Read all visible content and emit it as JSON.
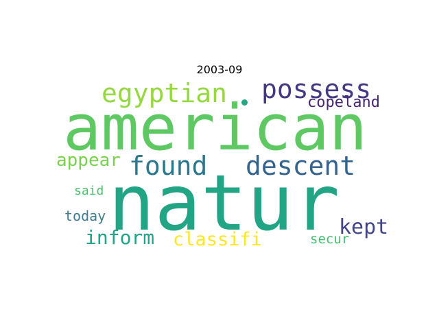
{
  "title": "2003-09",
  "words": [
    {
      "text": "american",
      "color": "#5ec962"
    },
    {
      "text": "natur",
      "color": "#21a585"
    },
    {
      "text": "egyptian",
      "color": "#95d840"
    },
    {
      "text": "possess",
      "color": "#443983"
    },
    {
      "text": "descent",
      "color": "#33638d"
    },
    {
      "text": "found",
      "color": "#2a788e"
    },
    {
      "text": "copeland",
      "color": "#482475"
    },
    {
      "text": "appear",
      "color": "#7ad151"
    },
    {
      "text": "inform",
      "color": "#20a386"
    },
    {
      "text": "classifi",
      "color": "#fde725"
    },
    {
      "text": "kept",
      "color": "#414487"
    },
    {
      "text": "said",
      "color": "#4ac16d"
    },
    {
      "text": "today",
      "color": "#3e7c8e"
    },
    {
      "text": "secur",
      "color": "#44bf70"
    }
  ],
  "dot_color": "#22a884"
}
